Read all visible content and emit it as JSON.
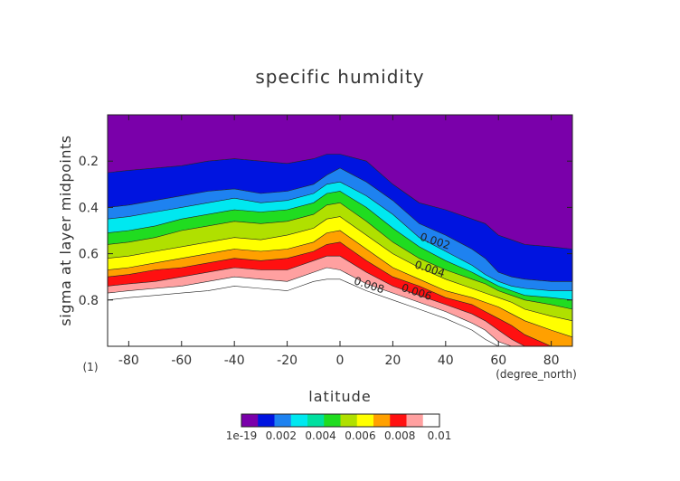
{
  "chart_data": {
    "type": "heatmap",
    "subtype": "filled-contour",
    "title": "specific humidity",
    "xlabel": "latitude",
    "xunit": "(degree_north)",
    "ylabel": "sigma at layer midpoints",
    "yunit": "(1)",
    "xlim": [
      -88,
      88
    ],
    "ylim_top_to_bottom": [
      0.0,
      1.0
    ],
    "y_reversed": true,
    "x_ticks": [
      -80,
      -60,
      -40,
      -20,
      0,
      20,
      40,
      60,
      80
    ],
    "y_ticks": [
      0.2,
      0.4,
      0.6,
      0.8
    ],
    "grid": false,
    "levels": [
      0.001,
      0.002,
      0.003,
      0.004,
      0.005,
      0.006,
      0.007,
      0.008,
      0.009,
      0.01
    ],
    "fill_colors": [
      "#7a00aa",
      "#0014e0",
      "#1e82f0",
      "#00e8f0",
      "#00e0a0",
      "#20dc20",
      "#b0e000",
      "#ffff00",
      "#ffa000",
      "#ff1010",
      "#ffa0a0",
      "#ffffff"
    ],
    "contour_labels": [
      {
        "text": "0.002",
        "lat": 30,
        "sigma": 0.54
      },
      {
        "text": "0.004",
        "lat": 28,
        "sigma": 0.66
      },
      {
        "text": "0.006",
        "lat": 23,
        "sigma": 0.76
      },
      {
        "text": "0.008",
        "lat": 5,
        "sigma": 0.73
      }
    ],
    "contour_lat": [
      -88,
      -80,
      -70,
      -60,
      -50,
      -40,
      -30,
      -20,
      -10,
      -5,
      0,
      10,
      20,
      30,
      40,
      50,
      55,
      60,
      65,
      70,
      80,
      88
    ],
    "contour_sigma": [
      [
        0.25,
        0.24,
        0.23,
        0.22,
        0.2,
        0.19,
        0.2,
        0.21,
        0.19,
        0.17,
        0.17,
        0.2,
        0.3,
        0.38,
        0.41,
        0.45,
        0.47,
        0.52,
        0.54,
        0.56,
        0.57,
        0.58
      ],
      [
        0.4,
        0.39,
        0.37,
        0.35,
        0.33,
        0.32,
        0.34,
        0.33,
        0.3,
        0.26,
        0.23,
        0.29,
        0.37,
        0.47,
        0.52,
        0.58,
        0.62,
        0.68,
        0.7,
        0.71,
        0.72,
        0.72
      ],
      [
        0.45,
        0.44,
        0.42,
        0.4,
        0.38,
        0.36,
        0.38,
        0.37,
        0.34,
        0.3,
        0.29,
        0.35,
        0.43,
        0.53,
        0.59,
        0.65,
        0.69,
        0.72,
        0.74,
        0.75,
        0.76,
        0.76
      ],
      [
        0.51,
        0.5,
        0.48,
        0.45,
        0.43,
        0.41,
        0.42,
        0.41,
        0.38,
        0.34,
        0.33,
        0.4,
        0.49,
        0.57,
        0.63,
        0.68,
        0.71,
        0.74,
        0.76,
        0.78,
        0.79,
        0.8
      ],
      [
        0.56,
        0.55,
        0.53,
        0.5,
        0.48,
        0.46,
        0.47,
        0.46,
        0.43,
        0.39,
        0.38,
        0.46,
        0.55,
        0.62,
        0.67,
        0.71,
        0.73,
        0.76,
        0.78,
        0.8,
        0.82,
        0.84
      ],
      [
        0.62,
        0.61,
        0.59,
        0.57,
        0.55,
        0.53,
        0.54,
        0.52,
        0.49,
        0.45,
        0.44,
        0.52,
        0.6,
        0.66,
        0.71,
        0.75,
        0.77,
        0.79,
        0.81,
        0.84,
        0.87,
        0.89
      ],
      [
        0.67,
        0.66,
        0.64,
        0.62,
        0.6,
        0.58,
        0.59,
        0.58,
        0.55,
        0.51,
        0.5,
        0.58,
        0.66,
        0.71,
        0.76,
        0.79,
        0.81,
        0.83,
        0.86,
        0.89,
        0.93,
        0.96
      ],
      [
        0.7,
        0.69,
        0.67,
        0.66,
        0.64,
        0.62,
        0.63,
        0.62,
        0.59,
        0.56,
        0.55,
        0.63,
        0.7,
        0.74,
        0.79,
        0.82,
        0.85,
        0.88,
        0.91,
        0.95,
        1.0,
        1.01
      ],
      [
        0.74,
        0.73,
        0.72,
        0.7,
        0.68,
        0.66,
        0.67,
        0.67,
        0.63,
        0.61,
        0.61,
        0.68,
        0.74,
        0.78,
        0.82,
        0.86,
        0.89,
        0.93,
        0.97,
        1.01,
        1.01,
        1.01
      ],
      [
        0.77,
        0.76,
        0.75,
        0.74,
        0.72,
        0.7,
        0.71,
        0.72,
        0.68,
        0.66,
        0.67,
        0.73,
        0.77,
        0.81,
        0.85,
        0.9,
        0.93,
        0.98,
        1.01,
        1.01,
        1.01,
        1.01
      ],
      [
        0.8,
        0.79,
        0.78,
        0.77,
        0.76,
        0.74,
        0.75,
        0.76,
        0.72,
        0.71,
        0.71,
        0.76,
        0.8,
        0.84,
        0.88,
        0.93,
        0.97,
        1.01,
        1.01,
        1.01,
        1.01,
        1.01
      ]
    ],
    "colorbar": {
      "tick_labels": [
        "1e-19",
        "0.002",
        "0.004",
        "0.006",
        "0.008",
        "0.01"
      ]
    }
  }
}
